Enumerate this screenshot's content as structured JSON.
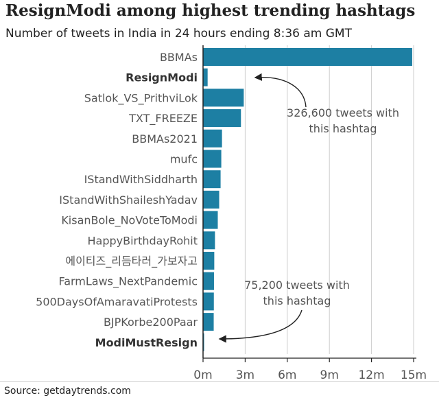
{
  "title": "ResignModi among highest trending hashtags",
  "subtitle": "Number of tweets in India in 24 hours ending 8:36 am GMT",
  "source": "Source: getdaytrends.com",
  "colors": {
    "bar": "#1d7fa3",
    "text": "#555555",
    "bold_text": "#333333",
    "grid": "#cccccc",
    "axis": "#222222"
  },
  "chart_data": {
    "type": "bar",
    "orientation": "horizontal",
    "title": "ResignModi among highest trending hashtags",
    "subtitle": "Number of tweets in India in 24 hours ending 8:36 am GMT",
    "xlabel": "",
    "ylabel": "",
    "xlim": [
      0,
      15500000
    ],
    "ticks": [
      0,
      3000000,
      6000000,
      9000000,
      12000000,
      15000000
    ],
    "tick_labels": [
      "0m",
      "3m",
      "6m",
      "9m",
      "12m",
      "15m"
    ],
    "categories": [
      {
        "label": "BBMAs",
        "value": 14900000,
        "bold": false
      },
      {
        "label": "ResignModi",
        "value": 326600,
        "bold": true
      },
      {
        "label": "Satlok_VS_PrithviLok",
        "value": 2900000,
        "bold": false
      },
      {
        "label": "TXT_FREEZE",
        "value": 2700000,
        "bold": false
      },
      {
        "label": "BBMAs2021",
        "value": 1350000,
        "bold": false
      },
      {
        "label": "mufc",
        "value": 1300000,
        "bold": false
      },
      {
        "label": "IStandWithSiddharth",
        "value": 1250000,
        "bold": false
      },
      {
        "label": "IStandWithShaileshYadav",
        "value": 1150000,
        "bold": false
      },
      {
        "label": "KisanBole_NoVoteToModi",
        "value": 1050000,
        "bold": false
      },
      {
        "label": "HappyBirthdayRohit",
        "value": 850000,
        "bold": false
      },
      {
        "label": "에이티즈_리듬타러_가보자고",
        "value": 800000,
        "bold": false
      },
      {
        "label": "FarmLaws_NextPandemic",
        "value": 780000,
        "bold": false
      },
      {
        "label": "500DaysOfAmaravatiProtests",
        "value": 770000,
        "bold": false
      },
      {
        "label": "BJPKorbe200Paar",
        "value": 760000,
        "bold": false
      },
      {
        "label": "ModiMustResign",
        "value": 75200,
        "bold": true
      }
    ],
    "annotations": [
      {
        "line1": "326,600 tweets with",
        "line2": "this hashtag",
        "target": "ResignModi"
      },
      {
        "line1": "75,200 tweets with",
        "line2": "this hashtag",
        "target": "ModiMustResign"
      }
    ]
  }
}
